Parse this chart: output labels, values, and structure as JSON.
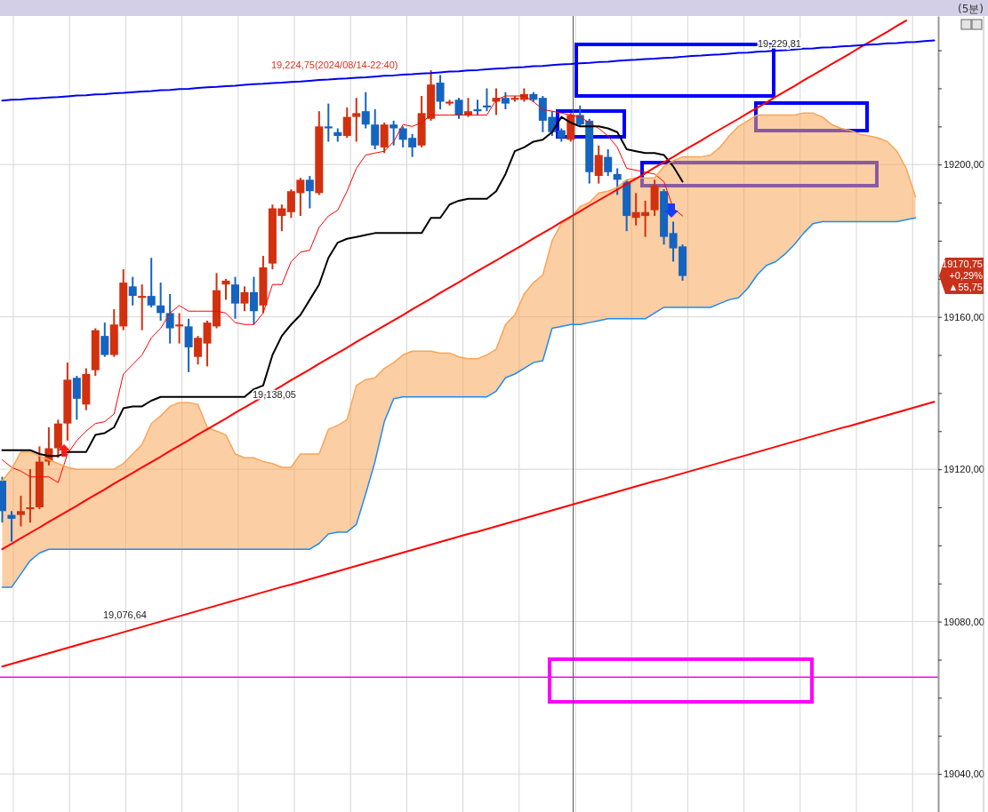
{
  "chart_data": {
    "type": "candlestick",
    "title": "(5분)",
    "categories": [
      null,
      null,
      null,
      null,
      null,
      null,
      null,
      null,
      null,
      null,
      null,
      null,
      null,
      null,
      null,
      null,
      null,
      null,
      null,
      null,
      null,
      null,
      null,
      null,
      null,
      null,
      null,
      null,
      null,
      null,
      null,
      null,
      null,
      null,
      null,
      null,
      null,
      null,
      null,
      null,
      null,
      null,
      null,
      null,
      null,
      null,
      null,
      null,
      null,
      null,
      null,
      null,
      null,
      null,
      null,
      null,
      null,
      null,
      null,
      null,
      null,
      null,
      null,
      null,
      null,
      null,
      null,
      null,
      null,
      null,
      null,
      null,
      null,
      null,
      null,
      null,
      null,
      null,
      null,
      null,
      null,
      null,
      null,
      null,
      null,
      null,
      null,
      null,
      null,
      null,
      null,
      null,
      null,
      null,
      null,
      null,
      null,
      null,
      null,
      null,
      null
    ],
    "ohlc": [
      [
        19117,
        19118,
        19106,
        19109
      ],
      [
        19108,
        19109,
        19101,
        19107
      ],
      [
        19108,
        19113,
        19105,
        19109
      ],
      [
        19109.5,
        19120,
        19106,
        19110
      ],
      [
        19110,
        19126,
        19109.5,
        19122
      ],
      [
        19122,
        19131,
        19121,
        19125.5
      ],
      [
        19125.5,
        19133,
        19123,
        19132
      ],
      [
        19132,
        19148,
        19127.5,
        19143.5
      ],
      [
        19144,
        19144.5,
        19133,
        19138.5
      ],
      [
        19137,
        19146.5,
        19135.5,
        19145
      ],
      [
        19146,
        19157,
        19144.5,
        19156.5
      ],
      [
        19155,
        19158.5,
        19149.5,
        19150
      ],
      [
        19150,
        19162,
        19149.5,
        19158
      ],
      [
        19157.5,
        19172.5,
        19156.5,
        19169
      ],
      [
        19168,
        19170.5,
        19163,
        19165.5
      ],
      [
        19165,
        19168.5,
        19156.5,
        19165.5
      ],
      [
        19165.5,
        19175.5,
        19162.5,
        19163
      ],
      [
        19163,
        19169,
        19159,
        19161
      ],
      [
        19161,
        19166,
        19153,
        19157
      ],
      [
        19157.5,
        19161,
        19153,
        19158
      ],
      [
        19157.5,
        19159.5,
        19145.5,
        19152
      ],
      [
        19149.5,
        19155,
        19147.5,
        19154.5
      ],
      [
        19153,
        19159,
        19147,
        19158.5
      ],
      [
        19157.5,
        19171.5,
        19157,
        19167
      ],
      [
        19168.5,
        19170,
        19164.5,
        19169.5
      ],
      [
        19168.5,
        19170.5,
        19159.5,
        19163.5
      ],
      [
        19163.5,
        19168,
        19161.5,
        19166.5
      ],
      [
        19166.5,
        19170.5,
        19158,
        19161.5
      ],
      [
        19163,
        19176,
        19161,
        19173
      ],
      [
        19174,
        19189.5,
        19172.5,
        19188.5
      ],
      [
        19186.5,
        19189.5,
        19182.5,
        19188.5
      ],
      [
        19187.5,
        19193.5,
        19186,
        19193
      ],
      [
        19192.5,
        19196.5,
        19186.5,
        19196
      ],
      [
        19196,
        19197,
        19188.5,
        19193
      ],
      [
        19192.5,
        19214,
        19192,
        19210
      ],
      [
        19210,
        19216,
        19206,
        19209.5
      ],
      [
        19208.5,
        19209.5,
        19206,
        19207.5
      ],
      [
        19207.5,
        19215,
        19207,
        19212.5
      ],
      [
        19212.5,
        19217.5,
        19206,
        19213.5
      ],
      [
        19214,
        19219,
        19209.5,
        19210.5
      ],
      [
        19210.5,
        19214.5,
        19204,
        19205
      ],
      [
        19204.5,
        19211,
        19203,
        19210.5
      ],
      [
        19210.5,
        19211.5,
        19205,
        19209.5
      ],
      [
        19209.5,
        19210,
        19204.5,
        19206.5
      ],
      [
        19207,
        19208,
        19202,
        19204.5
      ],
      [
        19205,
        19218,
        19204.5,
        19213.5
      ],
      [
        19212,
        19224.75,
        19211.5,
        19221
      ],
      [
        19221.5,
        19223.5,
        19214.5,
        19216.5
      ],
      [
        19216,
        19217,
        19215.5,
        19216.5
      ],
      [
        19217,
        19217.5,
        19212,
        19213
      ],
      [
        19213,
        19217.5,
        19212.5,
        19214
      ],
      [
        19214.5,
        19217,
        19213,
        19214
      ],
      [
        19215.5,
        19220,
        19214,
        19215
      ],
      [
        19216.5,
        19220,
        19213,
        19217.5
      ],
      [
        19217.5,
        19219,
        19214.5,
        19216
      ],
      [
        19217,
        19218,
        19216.5,
        19217.5
      ],
      [
        19217,
        19220,
        19216.5,
        19218.5
      ],
      [
        19218.5,
        19219,
        19216.5,
        19217
      ],
      [
        19217.5,
        19218,
        19208.5,
        19211.5
      ],
      [
        19212.5,
        19214,
        19207.5,
        19208.5
      ],
      [
        19209,
        19209.5,
        19206,
        19207
      ],
      [
        19206.5,
        19213.5,
        19206,
        19213
      ],
      [
        19213,
        19215.5,
        19210,
        19210.5
      ],
      [
        19211.5,
        19212,
        19195,
        19198
      ],
      [
        19197,
        19205,
        19195,
        19202.5
      ],
      [
        19202,
        19204,
        19197,
        19198
      ],
      [
        19197.5,
        19199,
        19192,
        19196
      ],
      [
        19195.5,
        19196,
        19182.5,
        19186.5
      ],
      [
        19186,
        19192.5,
        19184,
        19187.5
      ],
      [
        19186.5,
        19190.5,
        19181,
        19187.5
      ],
      [
        19188,
        19196,
        19186.5,
        19194.5
      ],
      [
        19193,
        19193.5,
        19179,
        19181
      ],
      [
        19182,
        19185,
        19174.5,
        19178
      ],
      [
        19178.5,
        19179,
        19169.5,
        19170.75
      ],
      null,
      null,
      null,
      null,
      null,
      null,
      null,
      null,
      null,
      null,
      null,
      null,
      null,
      null,
      null,
      null,
      null,
      null,
      null,
      null,
      null,
      null,
      null,
      null,
      null,
      null,
      null
    ],
    "colors": [
      "#1464c0",
      "#1464c0",
      "#d2300e",
      "#d2300e",
      "#d2300e",
      "#d2300e",
      "#d2300e",
      "#d2300e",
      "#1464c0",
      "#d2300e",
      "#d2300e",
      "#1464c0",
      "#d2300e",
      "#d2300e",
      "#1464c0",
      "#d2300e",
      "#1464c0",
      "#1464c0",
      "#1464c0",
      "#d2300e",
      "#1464c0",
      "#d2300e",
      "#d2300e",
      "#d2300e",
      "#d2300e",
      "#1464c0",
      "#d2300e",
      "#1464c0",
      "#d2300e",
      "#d2300e",
      "#d2300e",
      "#d2300e",
      "#d2300e",
      "#1464c0",
      "#d2300e",
      "#1464c0",
      "#1464c0",
      "#d2300e",
      "#d2300e",
      "#1464c0",
      "#1464c0",
      "#d2300e",
      "#1464c0",
      "#1464c0",
      "#1464c0",
      "#d2300e",
      "#d2300e",
      "#1464c0",
      "#d2300e",
      "#1464c0",
      "#d2300e",
      "#1464c0",
      "#1464c0",
      "#d2300e",
      "#1464c0",
      "#d2300e",
      "#d2300e",
      "#1464c0",
      "#1464c0",
      "#1464c0",
      "#1464c0",
      "#d2300e",
      "#1464c0",
      "#1464c0",
      "#d2300e",
      "#1464c0",
      "#1464c0",
      "#1464c0",
      "#d2300e",
      "#d2300e",
      "#d2300e",
      "#1464c0",
      "#1464c0",
      "#1464c0",
      null,
      null,
      null,
      null,
      null,
      null,
      null,
      null,
      null,
      null,
      null,
      null,
      null,
      null,
      null,
      null,
      null,
      null,
      null,
      null,
      null,
      null,
      null,
      null,
      null,
      null,
      null
    ],
    "series": [
      {
        "type": "line",
        "color": "#ff0000",
        "values": [
          19122.5,
          19120.5,
          19119.5,
          19118,
          19118,
          19118,
          19116.5,
          19124,
          19127.5,
          19130,
          19132,
          19132.5,
          19134.5,
          19145,
          19147.5,
          19150,
          19154.5,
          19157,
          19161,
          19163,
          19161.5,
          19161.5,
          19161.5,
          19161.5,
          19161,
          19158.5,
          19158,
          19158,
          19161,
          19168.5,
          19168.5,
          19174.5,
          19177,
          19177.5,
          19183.5,
          19186.5,
          19188,
          19193,
          19199,
          19202.5,
          19203,
          19203.5,
          19206,
          19210.5,
          19210,
          19211,
          19213,
          19213,
          19213,
          19213,
          19213,
          19213,
          19213,
          19217,
          19218,
          19218,
          19218,
          19216.5,
          19214.5,
          19214,
          19213.5,
          19213,
          19212.5,
          19211,
          19209.5,
          19207.5,
          19204.5,
          19199,
          19198.5,
          19198,
          19197.5,
          19195.5,
          19188.5,
          19186.5,
          null,
          null,
          null,
          null,
          null,
          null,
          null,
          null,
          null,
          null,
          null,
          null,
          null,
          null,
          null,
          null,
          null,
          null,
          null,
          null,
          null,
          null,
          null,
          null,
          null,
          null,
          null
        ]
      },
      {
        "type": "line",
        "color": "#000000",
        "values": [
          19125,
          19125,
          19125,
          19125,
          19124,
          19123.5,
          19123.5,
          19124.5,
          19124.5,
          19124.5,
          19129,
          19129.5,
          19131,
          19136,
          19136.5,
          19136.5,
          19138,
          19139,
          19139,
          19139,
          19139,
          19139,
          19139,
          19139,
          19139,
          19139,
          19139,
          19141,
          19142,
          19150,
          19155,
          19158,
          19160.5,
          19164.5,
          19168.5,
          19175.5,
          19179.5,
          19180.5,
          19181,
          19181.5,
          19182,
          19182,
          19182,
          19182,
          19182,
          19182,
          19186,
          19186,
          19189.5,
          19190.5,
          19191,
          19191,
          19191,
          19193,
          19197.5,
          19203.5,
          19204.5,
          19206,
          19206.5,
          19208.5,
          19212.5,
          19211,
          19210,
          19210,
          19210,
          19209.5,
          19208.5,
          19204,
          19203.5,
          19203,
          19203,
          19202.5,
          19199.5,
          19195.5,
          null,
          null,
          null,
          null,
          null,
          null,
          null,
          null,
          null,
          null,
          null,
          null,
          null,
          null,
          null,
          null,
          null,
          null,
          null,
          null,
          null,
          null,
          null,
          null,
          null,
          null,
          null
        ]
      },
      {
        "type": "line",
        "color": "#f9a55a",
        "values": [
          19117,
          19120,
          19124.5,
          19124.5,
          19123.5,
          19122.5,
          19121.5,
          19120.5,
          19120,
          19120,
          19120,
          19120,
          19120,
          19121.5,
          19124,
          19126.5,
          19132,
          19134,
          19136.5,
          19137.5,
          19137.5,
          19137,
          19131,
          19130,
          19129,
          19124,
          19123,
          19123,
          19122,
          19121.5,
          19120.5,
          19120.5,
          19124,
          19124,
          19124,
          19130.5,
          19131.5,
          19133,
          19142,
          19143.5,
          19144,
          19146.5,
          19148,
          19150,
          19151,
          19151,
          19151,
          19150.5,
          19150.5,
          19149.5,
          19149,
          19149,
          19150,
          19151.5,
          19158,
          19160.5,
          19166,
          19169,
          19171,
          19180,
          19184.5,
          19186,
          19189,
          19190,
          19192.5,
          19193,
          19194,
          19196,
          19196.5,
          19196.5,
          19196.5,
          19199.5,
          19201,
          19202,
          19202,
          19202,
          19202.5,
          19204.5,
          19207.5,
          19210,
          19211.5,
          19213,
          19213,
          19213,
          19213,
          19213,
          19213.5,
          19213.5,
          19212.5,
          19210.5,
          19209.5,
          19209,
          19208,
          19207.5,
          19207,
          19206,
          19203.5,
          19199,
          19191.5,
          null,
          null
        ],
        "upper": [
          19117,
          19120,
          19124.5,
          19124.5,
          19123.5,
          19122.5,
          19121.5,
          19120.5,
          19120,
          19120,
          19120,
          19120,
          19120,
          19121.5,
          19124,
          19126.5,
          19132,
          19134,
          19136.5,
          19137.5,
          19137.5,
          19137,
          19131,
          19130,
          19129,
          19124,
          19123,
          19123,
          19122,
          19121.5,
          19120.5,
          19120.5,
          19124,
          19124,
          19124,
          19130.5,
          19131.5,
          19133,
          19142,
          19143.5,
          19144,
          19146.5,
          19148,
          19150,
          19151,
          19151,
          19151,
          19150.5,
          19150.5,
          19149.5,
          19149,
          19149,
          19150,
          19151.5,
          19158,
          19160.5,
          19166,
          19169,
          19171,
          19180,
          19184.5,
          19186,
          19189,
          19190,
          19192.5,
          19193,
          19194,
          19196,
          19196.5,
          19196.5,
          19196.5,
          19199.5,
          19201,
          19202,
          19202,
          19202,
          19202.5,
          19204.5,
          19207.5,
          19210,
          19211.5,
          19213,
          19213,
          19213,
          19213,
          19213,
          19213.5,
          19213.5,
          19212.5,
          19210.5,
          19209.5,
          19209,
          19208,
          19207.5,
          19207,
          19206,
          19203.5,
          19199,
          19191.5,
          null,
          null
        ],
        "lower": [
          19089,
          19089,
          19092.5,
          19096,
          19098,
          19099,
          19099,
          19099,
          19099,
          19099,
          19099,
          19099,
          19099,
          19099,
          19099,
          19099,
          19099,
          19099,
          19099,
          19099,
          19099,
          19099,
          19099,
          19099,
          19099,
          19099,
          19099,
          19099,
          19099,
          19099,
          19099,
          19099,
          19099,
          19099,
          19100.5,
          19103,
          19103.5,
          19103.5,
          19105.5,
          19113.5,
          19122,
          19132.5,
          19138.5,
          19139,
          19139,
          19139,
          19139,
          19139,
          19139,
          19139,
          19139,
          19139,
          19139,
          19140.5,
          19144,
          19145,
          19146.5,
          19148,
          19148.5,
          19157,
          19157.5,
          19158,
          19158,
          19158.5,
          19159,
          19159.5,
          19159.5,
          19159.5,
          19159.5,
          19159.5,
          19161,
          19162.5,
          19162.5,
          19162.5,
          19162.5,
          19162.5,
          19162.5,
          19163.5,
          19164.5,
          19165,
          19167.5,
          19171,
          19173.5,
          19174.5,
          19176.5,
          19179,
          19182,
          19184.5,
          19185,
          19185,
          19185,
          19185,
          19185,
          19185,
          19185,
          19185,
          19185,
          19185.5,
          19186,
          null,
          null
        ]
      },
      {
        "type": "line",
        "color": "#1e8cf0",
        "values": [
          19089,
          19089,
          19092.5,
          19096,
          19098,
          19099,
          19099,
          19099,
          19099,
          19099,
          19099,
          19099,
          19099,
          19099,
          19099,
          19099,
          19099,
          19099,
          19099,
          19099,
          19099,
          19099,
          19099,
          19099,
          19099,
          19099,
          19099,
          19099,
          19099,
          19099,
          19099,
          19099,
          19099,
          19099,
          19100.5,
          19103,
          19103.5,
          19103.5,
          19105.5,
          19113.5,
          19122,
          19132.5,
          19138.5,
          19139,
          19139,
          19139,
          19139,
          19139,
          19139,
          19139,
          19139,
          19139,
          19139,
          19140.5,
          19144,
          19145,
          19146.5,
          19148,
          19148.5,
          19157,
          19157.5,
          19158,
          19158,
          19158.5,
          19159,
          19159.5,
          19159.5,
          19159.5,
          19159.5,
          19159.5,
          19161,
          19162.5,
          19162.5,
          19162.5,
          19162.5,
          19162.5,
          19162.5,
          19163.5,
          19164.5,
          19165,
          19167.5,
          19171,
          19173.5,
          19174.5,
          19176.5,
          19179,
          19182,
          19184.5,
          19185,
          19185,
          19185,
          19185,
          19185,
          19185,
          19185,
          19185,
          19185,
          19185.5,
          19186,
          null,
          null
        ]
      },
      {
        "type": "line",
        "color": "#ff0000",
        "values": [
          19099.0,
          19100.4,
          19101.9,
          19103.3,
          19104.7,
          19106.2,
          19107.6,
          19109.0,
          19110.4,
          19111.9,
          19113.3,
          19114.7,
          19116.2,
          19117.6,
          19119.0,
          19120.5,
          19121.9,
          19123.3,
          19124.8,
          19126.2,
          19127.6,
          19129.1,
          19130.5,
          19131.9,
          19133.3,
          19134.8,
          19136.2,
          19137.6,
          19139.1,
          19140.5,
          19141.9,
          19143.4,
          19144.8,
          19146.2,
          19147.7,
          19149.1,
          19150.5,
          19151.9,
          19153.4,
          19154.8,
          19156.2,
          19157.7,
          19159.1,
          19160.5,
          19162.0,
          19163.4,
          19164.8,
          19166.3,
          19167.7,
          19169.1,
          19170.6,
          19172.0,
          19173.4,
          19174.8,
          19176.3,
          19177.7,
          19179.1,
          19180.6,
          19182.0,
          19183.4,
          19184.9,
          19186.3,
          19187.7,
          19189.2,
          19190.6,
          19192.0,
          19193.4,
          19194.9,
          19196.3,
          19197.7,
          19199.2,
          19200.6,
          19202.0,
          19203.5,
          19204.9,
          19206.3,
          19207.8,
          19209.2,
          19210.6,
          19212.0,
          19213.5,
          19214.9,
          19216.3,
          19217.8,
          19219.2,
          19220.6,
          19222.1,
          19223.5,
          19224.9,
          19226.4,
          19227.8,
          19229.2,
          19230.7,
          19232.1,
          19233.5,
          19234.9,
          19236.4,
          19237.8,
          null,
          null,
          null
        ]
      },
      {
        "type": "line",
        "color": "#ff0000",
        "values": [
          19068.2,
          19068.9,
          19069.6,
          19070.3,
          19071.0,
          19071.7,
          19072.4,
          19073.1,
          19073.8,
          19074.5,
          19075.2,
          19075.8,
          19076.5,
          19077.2,
          19077.9,
          19078.6,
          19079.3,
          19080.0,
          19080.7,
          19081.4,
          19082.1,
          19082.8,
          19083.5,
          19084.2,
          19084.9,
          19085.6,
          19086.3,
          19087.0,
          19087.7,
          19088.4,
          19089.1,
          19089.7,
          19090.4,
          19091.1,
          19091.8,
          19092.5,
          19093.2,
          19093.9,
          19094.6,
          19095.3,
          19096.0,
          19096.7,
          19097.4,
          19098.1,
          19098.8,
          19099.5,
          19100.2,
          19100.9,
          19101.6,
          19102.3,
          19103.0,
          19103.6,
          19104.3,
          19105.0,
          19105.7,
          19106.4,
          19107.1,
          19107.8,
          19108.5,
          19109.2,
          19109.9,
          19110.6,
          19111.3,
          19112.0,
          19112.7,
          19113.4,
          19114.1,
          19114.8,
          19115.5,
          19116.2,
          19116.9,
          19117.5,
          19118.2,
          19118.9,
          19119.6,
          19120.3,
          19121.0,
          19121.7,
          19122.4,
          19123.1,
          19123.8,
          19124.5,
          19125.2,
          19125.9,
          19126.6,
          19127.3,
          19128.0,
          19128.7,
          19129.4,
          19130.1,
          19130.8,
          19131.4,
          19132.1,
          19132.8,
          19133.5,
          19134.2,
          19134.9,
          19135.6,
          19136.3,
          19137.0,
          19137.7
        ]
      },
      {
        "type": "line",
        "color": "#0000ee",
        "values": [
          19216.8,
          19217.0,
          19217.1,
          19217.3,
          19217.4,
          19217.6,
          19217.7,
          19217.9,
          19218.1,
          19218.2,
          19218.4,
          19218.5,
          19218.7,
          19218.8,
          19219.0,
          19219.2,
          19219.3,
          19219.5,
          19219.6,
          19219.8,
          19219.9,
          19220.1,
          19220.3,
          19220.4,
          19220.6,
          19220.7,
          19220.9,
          19221.1,
          19221.2,
          19221.4,
          19221.5,
          19221.7,
          19221.8,
          19222.0,
          19222.2,
          19222.3,
          19222.5,
          19222.6,
          19222.8,
          19222.9,
          19223.1,
          19223.3,
          19223.4,
          19223.6,
          19223.7,
          19223.9,
          19224.0,
          19224.2,
          19224.4,
          19224.5,
          19224.7,
          19224.8,
          19225.0,
          19225.2,
          19225.3,
          19225.5,
          19225.6,
          19225.8,
          19225.9,
          19226.1,
          19226.3,
          19226.4,
          19226.6,
          19226.7,
          19226.9,
          19227.0,
          19227.2,
          19227.4,
          19227.5,
          19227.7,
          19227.8,
          19228.0,
          19228.1,
          19228.3,
          19228.5,
          19228.6,
          19228.8,
          19228.9,
          19229.1,
          19229.3,
          19229.4,
          19229.6,
          19229.7,
          19229.9,
          19230.0,
          19230.2,
          19230.4,
          19230.5,
          19230.7,
          19230.8,
          19231.0,
          19231.1,
          19231.3,
          19231.5,
          19231.6,
          19231.8,
          19231.9,
          19232.1,
          19232.2,
          19232.4,
          19232.6
        ]
      }
    ],
    "ref_lines": [
      {
        "axis": "y",
        "value": 19065.4,
        "color": "#ff00ff"
      }
    ],
    "annotations": [
      "19,224,75(2024/08/14-22:40)",
      {
        "text": "19,229,81",
        "y": 19229.81
      },
      "19,138,05",
      {
        "text": "19,076,64",
        "y": 19076.64
      },
      "19170,75\n+0,29%\n▲55,75"
    ],
    "ylim": [
      19030,
      19239
    ],
    "yticks": [
      {
        "value": 19040,
        "label": "19040,00"
      },
      {
        "value": 19050,
        "label": null
      },
      {
        "value": 19060,
        "label": null
      },
      {
        "value": 19070,
        "label": null
      },
      {
        "value": 19080,
        "label": "19080,00"
      },
      {
        "value": 19090,
        "label": null
      },
      {
        "value": 19100,
        "label": null
      },
      {
        "value": 19110,
        "label": null
      },
      {
        "value": 19120,
        "label": "19120,00"
      },
      {
        "value": 19130,
        "label": null
      },
      {
        "value": 19140,
        "label": null
      },
      {
        "value": 19150,
        "label": null
      },
      {
        "value": 19160,
        "label": "19160,00"
      },
      {
        "value": 19170,
        "label": null
      },
      {
        "value": 19180,
        "label": null
      },
      {
        "value": 19190,
        "label": null
      },
      {
        "value": 19200,
        "label": "19200,00"
      },
      {
        "value": 19210,
        "label": null
      },
      {
        "value": 19220,
        "label": null
      },
      {
        "value": 19230,
        "label": null
      }
    ],
    "grid": true
  }
}
